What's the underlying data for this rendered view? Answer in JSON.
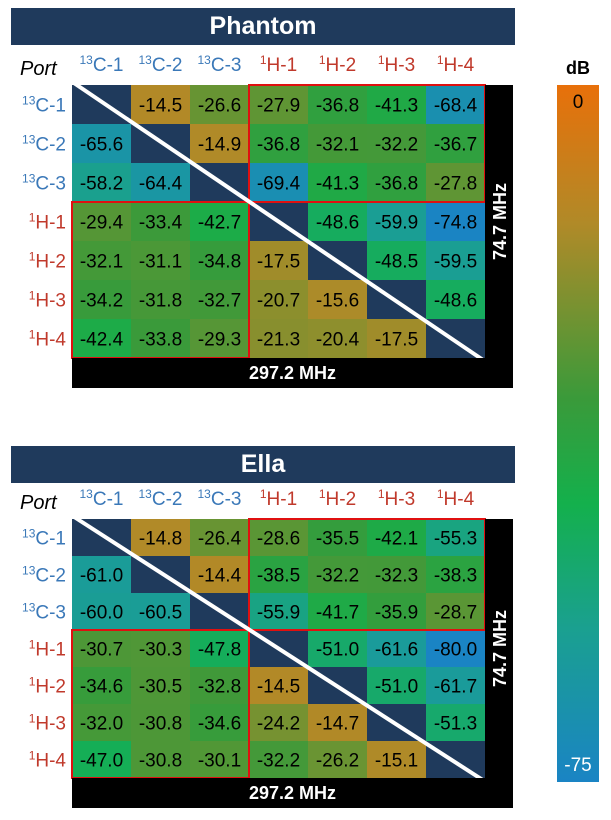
{
  "colorbar": {
    "unit": "dB",
    "max_label": "0",
    "min_label": "-75"
  },
  "chart_data": [
    {
      "type": "heatmap",
      "title": "Phantom",
      "corner_label": "Port",
      "ports": [
        {
          "mass": "13",
          "name": "C-1",
          "kind": "C"
        },
        {
          "mass": "13",
          "name": "C-2",
          "kind": "C"
        },
        {
          "mass": "13",
          "name": "C-3",
          "kind": "C"
        },
        {
          "mass": "1",
          "name": "H-1",
          "kind": "H"
        },
        {
          "mass": "1",
          "name": "H-2",
          "kind": "H"
        },
        {
          "mass": "1",
          "name": "H-3",
          "kind": "H"
        },
        {
          "mass": "1",
          "name": "H-4",
          "kind": "H"
        }
      ],
      "values": [
        [
          null,
          -14.5,
          -26.6,
          -27.9,
          -36.8,
          -41.3,
          -68.4
        ],
        [
          -65.6,
          null,
          -14.9,
          -36.8,
          -32.1,
          -32.2,
          -36.7
        ],
        [
          -58.2,
          -64.4,
          null,
          -69.4,
          -41.3,
          -36.8,
          -27.8
        ],
        [
          -29.4,
          -33.4,
          -42.7,
          null,
          -48.6,
          -59.9,
          -74.8
        ],
        [
          -32.1,
          -31.1,
          -34.8,
          -17.5,
          null,
          -48.5,
          -59.5
        ],
        [
          -34.2,
          -31.8,
          -32.7,
          -20.7,
          -15.6,
          null,
          -48.6
        ],
        [
          -42.4,
          -33.8,
          -29.3,
          -21.3,
          -20.4,
          -17.5,
          null
        ]
      ],
      "bottom_label": "297.2 MHz",
      "side_label": "74.7 MHz",
      "value_range": [
        -75,
        0
      ]
    },
    {
      "type": "heatmap",
      "title": "Ella",
      "corner_label": "Port",
      "ports": [
        {
          "mass": "13",
          "name": "C-1",
          "kind": "C"
        },
        {
          "mass": "13",
          "name": "C-2",
          "kind": "C"
        },
        {
          "mass": "13",
          "name": "C-3",
          "kind": "C"
        },
        {
          "mass": "1",
          "name": "H-1",
          "kind": "H"
        },
        {
          "mass": "1",
          "name": "H-2",
          "kind": "H"
        },
        {
          "mass": "1",
          "name": "H-3",
          "kind": "H"
        },
        {
          "mass": "1",
          "name": "H-4",
          "kind": "H"
        }
      ],
      "values": [
        [
          null,
          -14.8,
          -26.4,
          -28.6,
          -35.5,
          -42.1,
          -55.3
        ],
        [
          -61.0,
          null,
          -14.4,
          -38.5,
          -32.2,
          -32.3,
          -38.3
        ],
        [
          -60.0,
          -60.5,
          null,
          -55.9,
          -41.7,
          -35.9,
          -28.7
        ],
        [
          -30.7,
          -30.3,
          -47.8,
          null,
          -51.0,
          -61.6,
          -80.0
        ],
        [
          -34.6,
          -30.5,
          -32.8,
          -14.5,
          null,
          -51.0,
          -61.7
        ],
        [
          -32.0,
          -30.8,
          -34.6,
          -24.2,
          -14.7,
          null,
          -51.3
        ],
        [
          -47.0,
          -30.8,
          -30.1,
          -32.2,
          -26.2,
          -15.1,
          null
        ]
      ],
      "bottom_label": "297.2 MHz",
      "side_label": "74.7 MHz",
      "value_range": [
        -75,
        0
      ]
    }
  ],
  "colors": {
    "title_bg": "#1f3a5c",
    "diag_cell": "#1f3a5c",
    "carbon_label": "#3a78b8",
    "proton_label": "#c0392b",
    "box_outline": "#e01010"
  }
}
